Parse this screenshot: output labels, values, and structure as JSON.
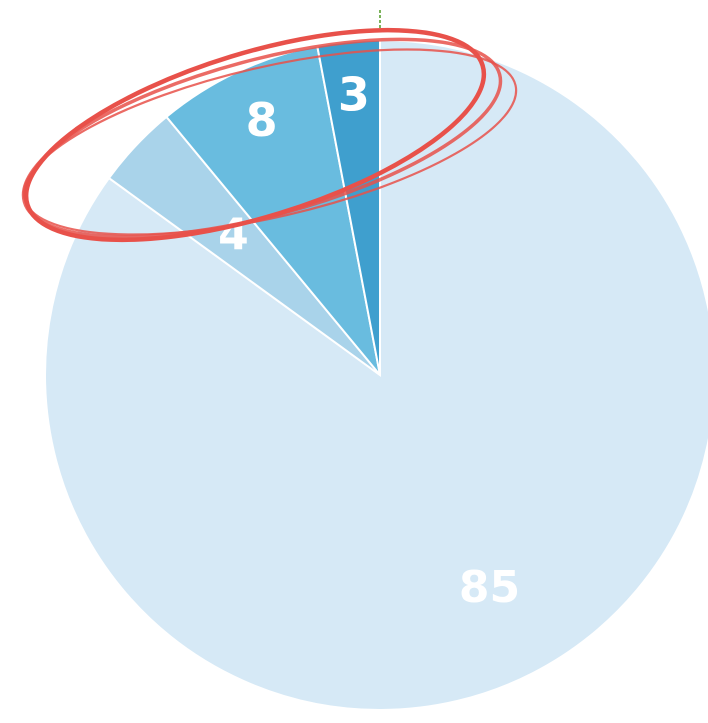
{
  "chart_data": {
    "type": "pie",
    "slices": [
      {
        "value": 85,
        "label": "85",
        "color": "#d6e9f6"
      },
      {
        "value": 4,
        "label": "4",
        "color": "#a9d3ea"
      },
      {
        "value": 8,
        "label": "8",
        "color": "#69bcdf"
      },
      {
        "value": 3,
        "label": "3",
        "color": "#3f9fce"
      }
    ],
    "start": "12 o'clock",
    "direction": "clockwise",
    "legend": "none",
    "annotation": {
      "type": "hand-drawn ellipse",
      "color": "#e8514a",
      "encircles": [
        "4",
        "8",
        "3"
      ]
    }
  }
}
